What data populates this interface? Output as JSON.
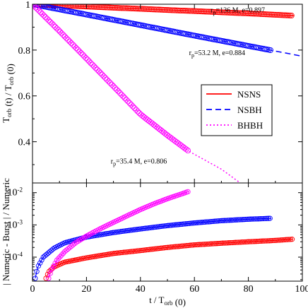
{
  "chart_data": [
    {
      "type": "line",
      "panel": "top",
      "ylabel": "T_orb (t) / T_orb (0)",
      "xlim": [
        0,
        100
      ],
      "ylim": [
        0.22,
        1.0
      ],
      "xticks": [
        "0",
        "20",
        "40",
        "60",
        "80",
        "100"
      ],
      "yticks": [
        {
          "value": 1.0,
          "label": "1"
        },
        {
          "value": 0.8,
          "label": "0.8"
        },
        {
          "value": 0.6,
          "label": "0.6"
        },
        {
          "value": 0.4,
          "label": "0.4"
        }
      ],
      "legend": {
        "position": "center-right",
        "entries": [
          {
            "name": "NSNS",
            "color": "#ff0000",
            "style": "solid"
          },
          {
            "name": "NSBH",
            "color": "#0000ff",
            "style": "dashed"
          },
          {
            "name": "BHBH",
            "color": "#ff00ff",
            "style": "dotted"
          }
        ]
      },
      "series": [
        {
          "name": "NSNS",
          "color": "#ff0000",
          "line_style": "solid",
          "markers": "open-circle",
          "annotation": {
            "prefix": "r",
            "sub": "p",
            "text": "=136 M, e=0.897",
            "x": 66,
            "y": 0.965
          },
          "line_points": [
            [
              0,
              1.0
            ],
            [
              20,
              0.99
            ],
            [
              40,
              0.98
            ],
            [
              60,
              0.97
            ],
            [
              80,
              0.96
            ],
            [
              97,
              0.95
            ]
          ],
          "marker_x_end": 96.5
        },
        {
          "name": "NSBH",
          "color": "#0000ff",
          "line_style": "dashed",
          "markers": "open-circle",
          "annotation": {
            "prefix": "r",
            "sub": "p",
            "text": "=53.2 M, e=0.884",
            "x": 58,
            "y": 0.778
          },
          "line_points": [
            [
              0,
              1.0
            ],
            [
              20,
              0.955
            ],
            [
              40,
              0.909
            ],
            [
              60,
              0.863
            ],
            [
              80,
              0.818
            ],
            [
              88.5,
              0.799
            ],
            [
              100,
              0.773
            ]
          ],
          "marker_x_end": 88.5
        },
        {
          "name": "BHBH",
          "color": "#ff00ff",
          "line_style": "dotted",
          "markers": "open-circle",
          "annotation": {
            "prefix": "r",
            "sub": "p",
            "text": "=35.4 M, e=0.806",
            "x": 29,
            "y": 0.305
          },
          "line_points": [
            [
              0,
              1.0
            ],
            [
              10,
              0.883
            ],
            [
              20,
              0.763
            ],
            [
              30,
              0.642
            ],
            [
              40,
              0.52
            ],
            [
              50,
              0.428
            ],
            [
              58,
              0.358
            ],
            [
              70,
              0.28
            ],
            [
              77,
              0.22
            ]
          ],
          "marker_x_end": 58
        }
      ]
    },
    {
      "type": "line",
      "panel": "bottom",
      "yscale": "log",
      "xlabel": "t / T_orb (0)",
      "ylabel": "| Numeric - Burst | / Numeric",
      "xlim": [
        0,
        100
      ],
      "ylim": [
        1.8e-05,
        0.02
      ],
      "xticks": [
        "0",
        "20",
        "40",
        "60",
        "80",
        "100"
      ],
      "yticks": [
        {
          "value": 0.0001,
          "base": "10",
          "exp": "-4"
        },
        {
          "value": 0.001,
          "base": "10",
          "exp": "-3"
        },
        {
          "value": 0.01,
          "base": "10",
          "exp": "-2"
        }
      ],
      "series": [
        {
          "name": "NSNS",
          "color": "#ff0000",
          "points": [
            [
              5,
              2.2e-05
            ],
            [
              6,
              3.5e-05
            ],
            [
              8,
              5e-05
            ],
            [
              12,
              7e-05
            ],
            [
              20,
              9.5e-05
            ],
            [
              30,
              0.00013
            ],
            [
              40,
              0.00016
            ],
            [
              50,
              0.0002
            ],
            [
              60,
              0.00024
            ],
            [
              70,
              0.00027
            ],
            [
              80,
              0.0003
            ],
            [
              90,
              0.00033
            ],
            [
              96.5,
              0.00036
            ]
          ]
        },
        {
          "name": "NSBH",
          "color": "#0000ff",
          "points": [
            [
              1,
              2.2e-05
            ],
            [
              2,
              5e-05
            ],
            [
              4,
              0.0001
            ],
            [
              8,
              0.00019
            ],
            [
              12,
              0.00028
            ],
            [
              20,
              0.00042
            ],
            [
              30,
              0.00058
            ],
            [
              40,
              0.00075
            ],
            [
              50,
              0.00095
            ],
            [
              60,
              0.00115
            ],
            [
              70,
              0.00135
            ],
            [
              80,
              0.0015
            ],
            [
              88.5,
              0.0016
            ]
          ]
        },
        {
          "name": "BHBH",
          "color": "#ff00ff",
          "points": [
            [
              6,
              2.2e-05
            ],
            [
              7,
              4e-05
            ],
            [
              9,
              8e-05
            ],
            [
              12,
              0.00015
            ],
            [
              16,
              0.00028
            ],
            [
              20,
              0.00045
            ],
            [
              25,
              0.00075
            ],
            [
              30,
              0.0012
            ],
            [
              35,
              0.0019
            ],
            [
              40,
              0.003
            ],
            [
              45,
              0.0045
            ],
            [
              50,
              0.0065
            ],
            [
              55,
              0.009
            ],
            [
              58,
              0.011
            ]
          ]
        }
      ]
    }
  ]
}
